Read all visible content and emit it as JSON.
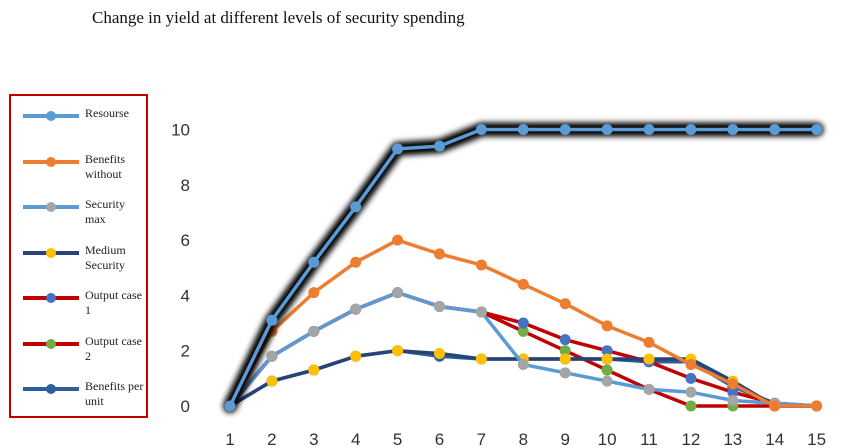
{
  "chart_data": {
    "type": "line",
    "title": "Change in yield at different levels of security spending",
    "xlabel": "",
    "ylabel": "",
    "x": [
      1,
      2,
      3,
      4,
      5,
      6,
      7,
      8,
      9,
      10,
      11,
      12,
      13,
      14,
      15
    ],
    "xlim": [
      1,
      15
    ],
    "ylim": [
      0,
      12
    ],
    "y_ticks": [
      0,
      2,
      4,
      6,
      8,
      10
    ],
    "grid": false,
    "legend_placement": "left",
    "series": [
      {
        "name": "Resourse",
        "color": "#5b9bd5",
        "marker_color": "#5b9bd5",
        "glow": true,
        "values": [
          0,
          3.1,
          5.2,
          7.2,
          9.3,
          9.4,
          10,
          10,
          10,
          10,
          10,
          10,
          10,
          10,
          10
        ]
      },
      {
        "name": "Benefits without",
        "color": "#ed7d31",
        "marker_color": "#ed7d31",
        "glow": false,
        "values": [
          0,
          2.7,
          4.1,
          5.2,
          6.0,
          5.5,
          5.1,
          4.4,
          3.7,
          2.9,
          2.3,
          1.5,
          0.8,
          0.0,
          0.0
        ]
      },
      {
        "name": "Security max",
        "color": "#5b9bd5",
        "marker_color": "#a5a5a5",
        "glow": false,
        "values": [
          0,
          1.8,
          2.7,
          3.5,
          4.1,
          3.6,
          3.4,
          1.5,
          1.2,
          0.9,
          0.6,
          0.5,
          0.2,
          0.1,
          0.0
        ]
      },
      {
        "name": "Medium Security",
        "color": "#264478",
        "marker_color": "#ffc000",
        "glow": false,
        "values": [
          0,
          0.9,
          1.3,
          1.8,
          2.0,
          1.9,
          1.7,
          1.7,
          1.7,
          1.7,
          1.7,
          1.7,
          0.9,
          0.0,
          0.0
        ]
      },
      {
        "name": "Output case 1",
        "color": "#c00000",
        "marker_color": "#4472c4",
        "glow": false,
        "values": [
          0,
          1.8,
          2.7,
          3.5,
          4.1,
          3.6,
          3.4,
          3.0,
          2.4,
          2.0,
          1.6,
          1.0,
          0.5,
          0.1,
          0.0
        ]
      },
      {
        "name": "Output case 2",
        "color": "#c00000",
        "marker_color": "#70ad47",
        "glow": false,
        "values": [
          0,
          1.8,
          2.7,
          3.5,
          4.1,
          3.6,
          3.4,
          2.7,
          2.0,
          1.3,
          0.6,
          0.0,
          0.0,
          0.0,
          0.0
        ]
      },
      {
        "name": "Benefits per unit",
        "color": "#2e5f9a",
        "marker_color": "#2e5f9a",
        "glow": false,
        "values": [
          0,
          0.9,
          1.3,
          1.8,
          2.0,
          1.8,
          1.7,
          1.7,
          1.7,
          1.7,
          1.6,
          1.6,
          0.7,
          0.1,
          0.0
        ]
      }
    ]
  }
}
